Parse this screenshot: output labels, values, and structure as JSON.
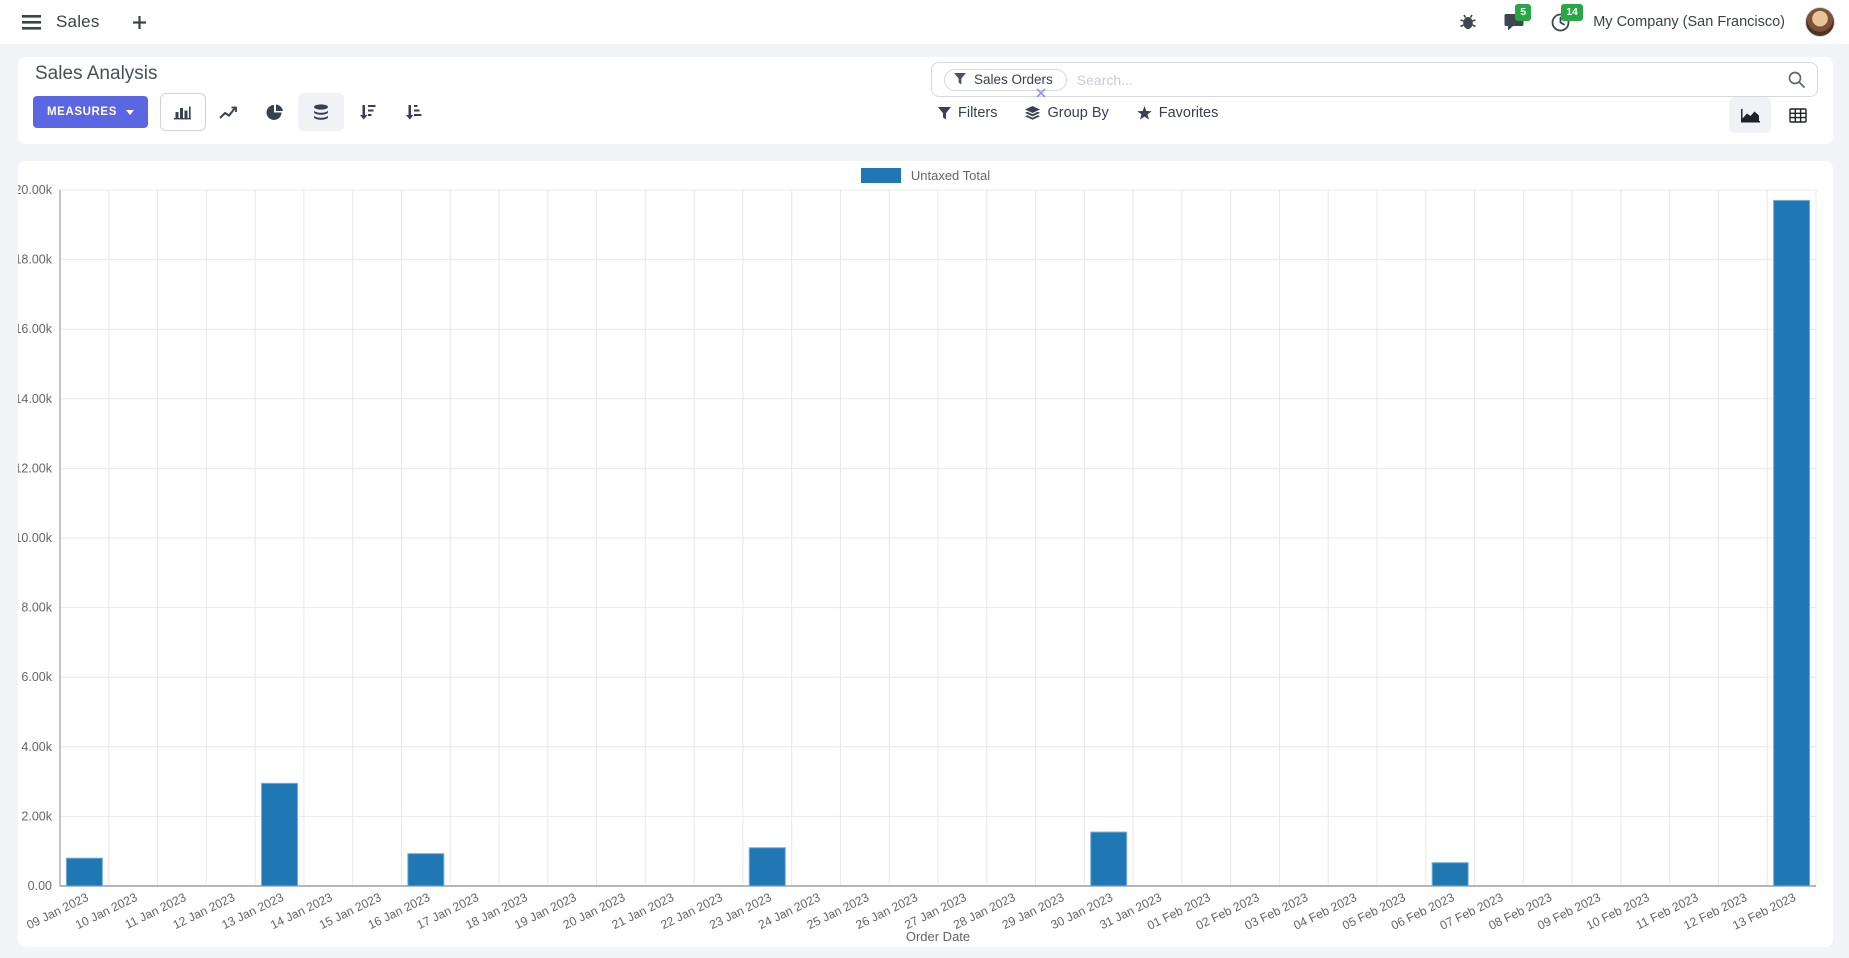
{
  "navbar": {
    "app_name": "Sales",
    "company": "My Company (San Francisco)",
    "message_badge": "5",
    "activity_badge": "14"
  },
  "panel": {
    "title": "Sales Analysis",
    "measures_label": "MEASURES",
    "search": {
      "facet_label": "Sales Orders",
      "placeholder": "Search..."
    },
    "filters_label": "Filters",
    "group_by_label": "Group By",
    "favorites_label": "Favorites"
  },
  "chart_data": {
    "type": "bar",
    "title": "",
    "xlabel": "Order Date",
    "ylabel": "",
    "ylim": [
      0,
      20000
    ],
    "grid": true,
    "legend_position": "top",
    "legend": {
      "label": "Untaxed Total",
      "color": "#1f77b4"
    },
    "y_tick_labels": [
      "0.00",
      "2.00k",
      "4.00k",
      "6.00k",
      "8.00k",
      "10.00k",
      "12.00k",
      "14.00k",
      "16.00k",
      "18.00k",
      "20.00k"
    ],
    "categories": [
      "09 Jan 2023",
      "10 Jan 2023",
      "11 Jan 2023",
      "12 Jan 2023",
      "13 Jan 2023",
      "14 Jan 2023",
      "15 Jan 2023",
      "16 Jan 2023",
      "17 Jan 2023",
      "18 Jan 2023",
      "19 Jan 2023",
      "20 Jan 2023",
      "21 Jan 2023",
      "22 Jan 2023",
      "23 Jan 2023",
      "24 Jan 2023",
      "25 Jan 2023",
      "26 Jan 2023",
      "27 Jan 2023",
      "28 Jan 2023",
      "29 Jan 2023",
      "30 Jan 2023",
      "31 Jan 2023",
      "01 Feb 2023",
      "02 Feb 2023",
      "03 Feb 2023",
      "04 Feb 2023",
      "05 Feb 2023",
      "06 Feb 2023",
      "07 Feb 2023",
      "08 Feb 2023",
      "09 Feb 2023",
      "10 Feb 2023",
      "11 Feb 2023",
      "12 Feb 2023",
      "13 Feb 2023"
    ],
    "series": [
      {
        "name": "Untaxed Total",
        "color": "#1f77b4",
        "values": [
          800,
          0,
          0,
          0,
          2950,
          0,
          0,
          930,
          0,
          0,
          0,
          0,
          0,
          0,
          1100,
          0,
          0,
          0,
          0,
          0,
          0,
          1550,
          0,
          0,
          0,
          0,
          0,
          0,
          670,
          0,
          0,
          0,
          0,
          0,
          0,
          19700
        ]
      }
    ]
  }
}
